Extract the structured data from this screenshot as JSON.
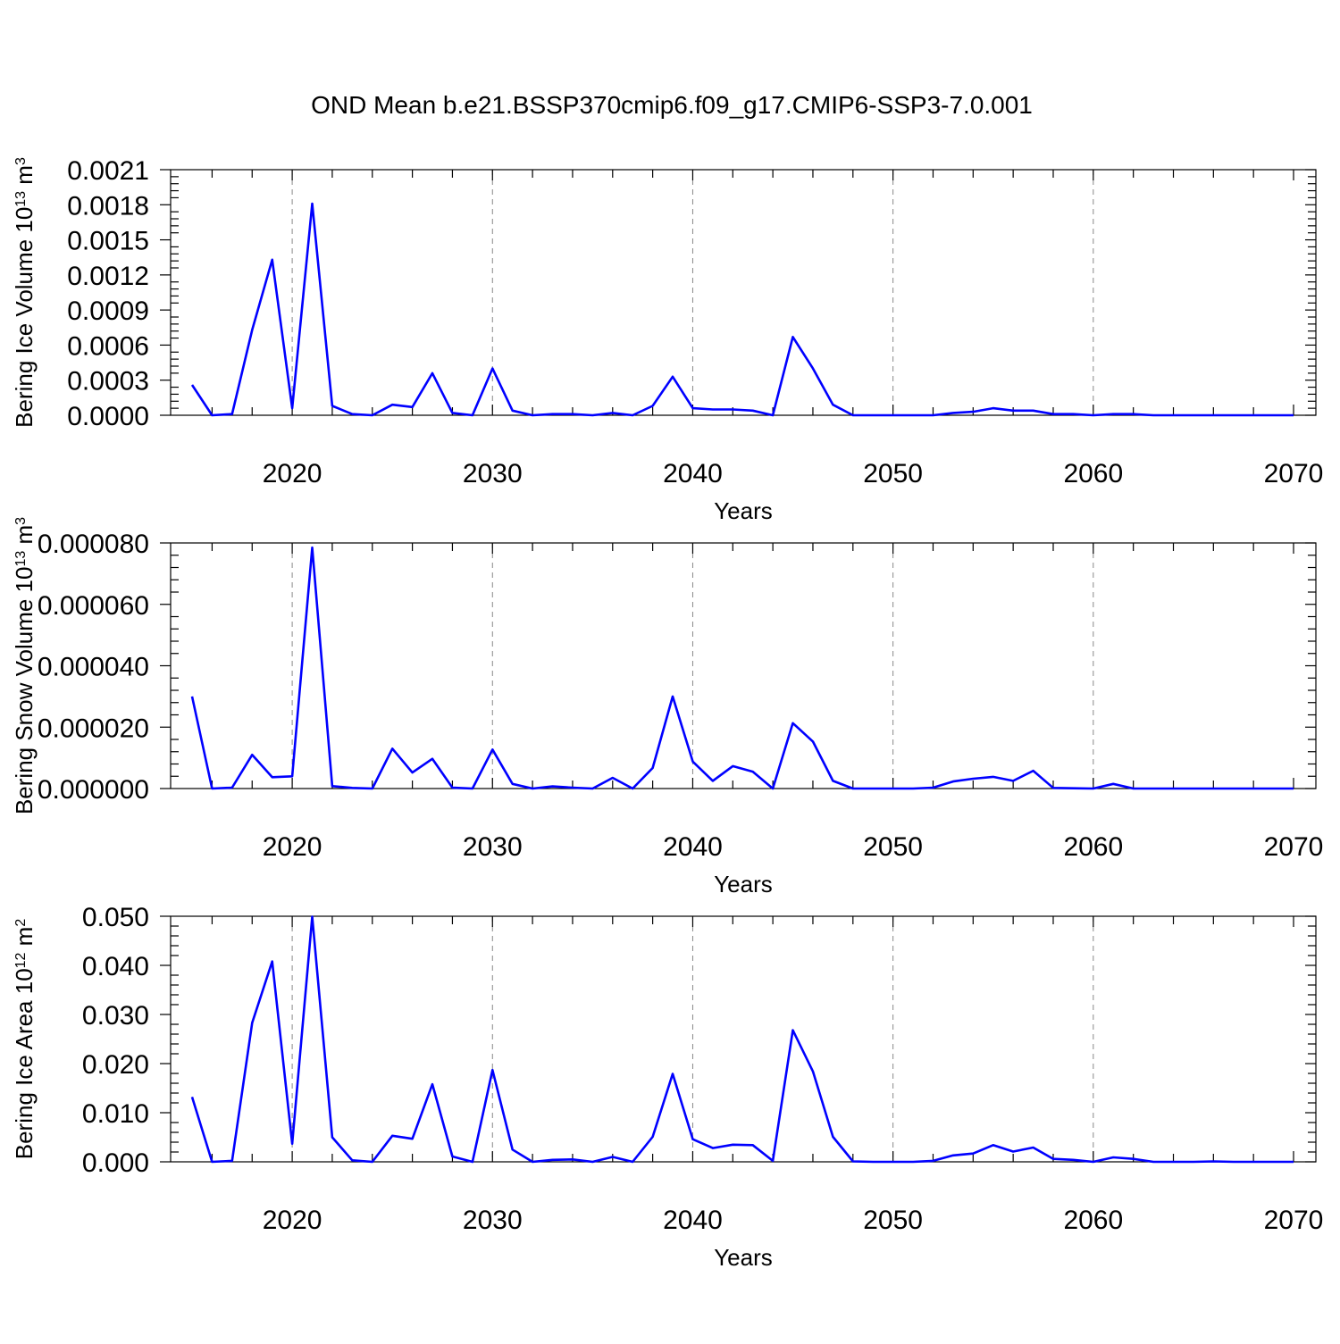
{
  "title": "OND Mean b.e21.BSSP370cmip6.f09_g17.CMIP6-SSP3-7.0.001",
  "colors": {
    "series": "#0000ff",
    "grid": "#888888",
    "axis": "#000000"
  },
  "chart_data": [
    {
      "type": "line",
      "ylabel": "Bering Ice Volume 10",
      "ylabel_exp": "13",
      "ylabel_unit": " m",
      "ylabel_unit_exp": "3",
      "xlabel": "Years",
      "xlim": [
        2015,
        2070
      ],
      "ylim": [
        0,
        0.0021
      ],
      "xticks": [
        2020,
        2030,
        2040,
        2050,
        2060,
        2070
      ],
      "yticks": [
        0,
        0.0003,
        0.0006,
        0.0009,
        0.0012,
        0.0015,
        0.0018,
        0.0021
      ],
      "ytick_labels": [
        "0.0000",
        "0.0003",
        "0.0006",
        "0.0009",
        "0.0012",
        "0.0015",
        "0.0018",
        "0.0021"
      ],
      "grid": "vertical dashed at major x ticks",
      "x": [
        2015,
        2016,
        2017,
        2018,
        2019,
        2020,
        2021,
        2022,
        2023,
        2024,
        2025,
        2026,
        2027,
        2028,
        2029,
        2030,
        2031,
        2032,
        2033,
        2034,
        2035,
        2036,
        2037,
        2038,
        2039,
        2040,
        2041,
        2042,
        2043,
        2044,
        2045,
        2046,
        2047,
        2048,
        2049,
        2050,
        2051,
        2052,
        2053,
        2054,
        2055,
        2056,
        2057,
        2058,
        2059,
        2060,
        2061,
        2062,
        2063,
        2064,
        2065,
        2066,
        2067,
        2068,
        2069,
        2070
      ],
      "y": [
        0.00026,
        0.0,
        1e-05,
        0.00073,
        0.00133,
        6e-05,
        0.00181,
        8e-05,
        1e-05,
        0.0,
        9e-05,
        7e-05,
        0.00036,
        2e-05,
        0.0,
        0.0004,
        4e-05,
        0.0,
        1e-05,
        1e-05,
        0.0,
        2e-05,
        0.0,
        8e-05,
        0.00033,
        6e-05,
        5e-05,
        5e-05,
        4e-05,
        0.0,
        0.00067,
        0.0004,
        9e-05,
        0.0,
        0.0,
        0.0,
        0.0,
        0.0,
        2e-05,
        3e-05,
        6e-05,
        4e-05,
        4e-05,
        1e-05,
        1e-05,
        0.0,
        1e-05,
        1e-05,
        0.0,
        0.0,
        0.0,
        0.0,
        0.0,
        0.0,
        0.0,
        0.0
      ]
    },
    {
      "type": "line",
      "ylabel": "Bering Snow Volume 10",
      "ylabel_exp": "13",
      "ylabel_unit": " m",
      "ylabel_unit_exp": "3",
      "xlabel": "Years",
      "xlim": [
        2015,
        2070
      ],
      "ylim": [
        0,
        8e-05
      ],
      "xticks": [
        2020,
        2030,
        2040,
        2050,
        2060,
        2070
      ],
      "yticks": [
        0,
        2e-05,
        4e-05,
        6e-05,
        8e-05
      ],
      "ytick_labels": [
        "0.000000",
        "0.000020",
        "0.000040",
        "0.000060",
        "0.000080"
      ],
      "grid": "vertical dashed at major x ticks",
      "x": [
        2015,
        2016,
        2017,
        2018,
        2019,
        2020,
        2021,
        2022,
        2023,
        2024,
        2025,
        2026,
        2027,
        2028,
        2029,
        2030,
        2031,
        2032,
        2033,
        2034,
        2035,
        2036,
        2037,
        2038,
        2039,
        2040,
        2041,
        2042,
        2043,
        2044,
        2045,
        2046,
        2047,
        2048,
        2049,
        2050,
        2051,
        2052,
        2053,
        2054,
        2055,
        2056,
        2057,
        2058,
        2059,
        2060,
        2061,
        2062,
        2063,
        2064,
        2065,
        2066,
        2067,
        2068,
        2069,
        2070
      ],
      "y": [
        3e-05,
        0.0,
        3e-07,
        1.1e-05,
        3.7e-06,
        4e-06,
        7.85e-05,
        8e-07,
        2e-07,
        0.0,
        1.3e-05,
        5.2e-06,
        9.7e-06,
        3e-07,
        0.0,
        1.27e-05,
        1.5e-06,
        0.0,
        7e-07,
        3e-07,
        0.0,
        3.5e-06,
        0.0,
        6.7e-06,
        3e-05,
        8.8e-06,
        2.5e-06,
        7.3e-06,
        5.5e-06,
        0.0,
        2.13e-05,
        1.53e-05,
        2.5e-06,
        0.0,
        0.0,
        0.0,
        0.0,
        3e-07,
        2.3e-06,
        3.2e-06,
        3.8e-06,
        2.5e-06,
        5.8e-06,
        2e-07,
        1e-07,
        0.0,
        1.5e-06,
        0.0,
        0.0,
        0.0,
        0.0,
        0.0,
        0.0,
        0.0,
        0.0,
        0.0
      ]
    },
    {
      "type": "line",
      "ylabel": "Bering Ice Area 10",
      "ylabel_exp": "12",
      "ylabel_unit": " m",
      "ylabel_unit_exp": "2",
      "xlabel": "Years",
      "xlim": [
        2015,
        2070
      ],
      "ylim": [
        0,
        0.05
      ],
      "xticks": [
        2020,
        2030,
        2040,
        2050,
        2060,
        2070
      ],
      "yticks": [
        0,
        0.01,
        0.02,
        0.03,
        0.04,
        0.05
      ],
      "ytick_labels": [
        "0.000",
        "0.010",
        "0.020",
        "0.030",
        "0.040",
        "0.050"
      ],
      "grid": "vertical dashed at major x ticks",
      "x": [
        2015,
        2016,
        2017,
        2018,
        2019,
        2020,
        2021,
        2022,
        2023,
        2024,
        2025,
        2026,
        2027,
        2028,
        2029,
        2030,
        2031,
        2032,
        2033,
        2034,
        2035,
        2036,
        2037,
        2038,
        2039,
        2040,
        2041,
        2042,
        2043,
        2044,
        2045,
        2046,
        2047,
        2048,
        2049,
        2050,
        2051,
        2052,
        2053,
        2054,
        2055,
        2056,
        2057,
        2058,
        2059,
        2060,
        2061,
        2062,
        2063,
        2064,
        2065,
        2066,
        2067,
        2068,
        2069,
        2070
      ],
      "y": [
        0.0132,
        0.0,
        0.0002,
        0.0283,
        0.0408,
        0.0037,
        0.0499,
        0.005,
        0.0003,
        0.0,
        0.0053,
        0.0047,
        0.0158,
        0.0011,
        0.0,
        0.0187,
        0.0025,
        0.0,
        0.0004,
        0.0005,
        0.0,
        0.001,
        0.0,
        0.0051,
        0.0179,
        0.0046,
        0.0028,
        0.0035,
        0.0034,
        0.0002,
        0.0268,
        0.0184,
        0.0051,
        0.0001,
        0.0,
        0.0,
        0.0,
        0.0002,
        0.0013,
        0.0017,
        0.0034,
        0.0021,
        0.0029,
        0.0006,
        0.0004,
        0.0,
        0.0009,
        0.0006,
        0.0,
        0.0,
        0.0,
        0.0001,
        0.0,
        0.0,
        0.0,
        0.0
      ]
    }
  ]
}
